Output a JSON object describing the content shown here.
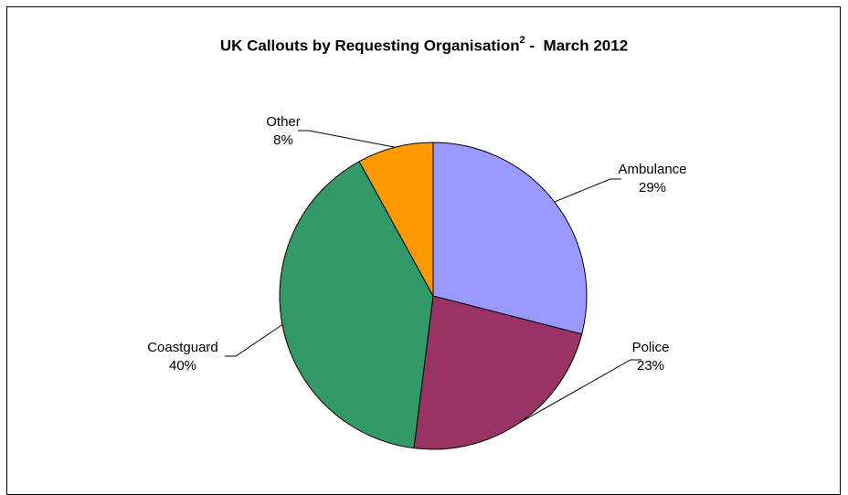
{
  "chart_data": {
    "type": "pie",
    "title": {
      "main": "UK Callouts by Requesting Organisation",
      "superscript": "2",
      "suffix": " -  March 2012"
    },
    "slices": [
      {
        "label": "Ambulance",
        "value": 29,
        "value_label": "29%",
        "color": "#9999ff"
      },
      {
        "label": "Police",
        "value": 23,
        "value_label": "23%",
        "color": "#993366"
      },
      {
        "label": "Coastguard",
        "value": 40,
        "value_label": "40%",
        "color": "#339966"
      },
      {
        "label": "Other",
        "value": 8,
        "value_label": "8%",
        "color": "#ff9900"
      }
    ],
    "start": "12 o'clock",
    "direction": "clockwise",
    "legend": "none"
  }
}
